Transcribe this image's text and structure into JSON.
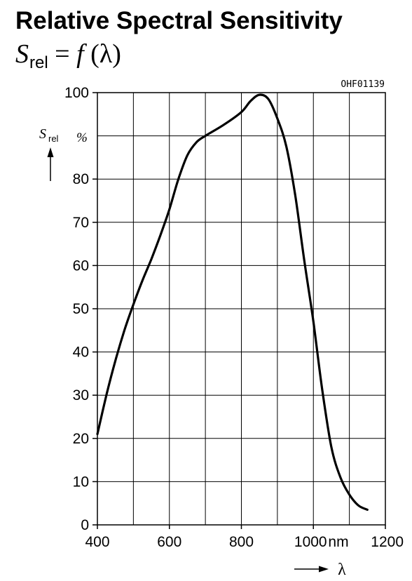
{
  "title": "Relative Spectral Sensitivity",
  "formula": {
    "lhs": "S",
    "lhs_sub": "rel",
    "eq": " = ",
    "fn": "f",
    "arg": " (λ)"
  },
  "figure_code": "OHF01139",
  "y_axis": {
    "symbol": "S",
    "symbol_sub": "rel",
    "unit": "%"
  },
  "x_axis": {
    "unit": "nm",
    "symbol": "λ"
  },
  "chart_data": {
    "type": "line",
    "title": "Relative Spectral Sensitivity",
    "xlabel": "λ",
    "ylabel": "S_rel",
    "x_unit": "nm",
    "y_unit": "%",
    "xlim": [
      400,
      1200
    ],
    "ylim": [
      0,
      100
    ],
    "x_ticks": [
      400,
      600,
      800,
      1000,
      1200
    ],
    "x_tick_labels": [
      "400",
      "600",
      "800",
      "1000",
      "1200"
    ],
    "x_gridlines": [
      400,
      500,
      600,
      700,
      800,
      900,
      1000,
      1100,
      1200
    ],
    "y_ticks": [
      0,
      10,
      20,
      30,
      40,
      50,
      60,
      70,
      80,
      100
    ],
    "y_tick_labels": [
      "0",
      "10",
      "20",
      "30",
      "40",
      "50",
      "60",
      "70",
      "80",
      "100"
    ],
    "y_gridlines": [
      0,
      10,
      20,
      30,
      40,
      50,
      60,
      70,
      80,
      90,
      100
    ],
    "grid": true,
    "series": [
      {
        "x": [
          400,
          425,
          450,
          475,
          500,
          525,
          550,
          575,
          600,
          625,
          650,
          675,
          700,
          750,
          800,
          825,
          850,
          875,
          900,
          925,
          950,
          975,
          1000,
          1025,
          1050,
          1075,
          1100,
          1125,
          1150
        ],
        "y": [
          21,
          30,
          38,
          45,
          51,
          56.5,
          61.5,
          67,
          73,
          80,
          85.5,
          88.5,
          90,
          92.5,
          95.5,
          98,
          99.5,
          98.5,
          94,
          87.5,
          76,
          61,
          47,
          31,
          18,
          11,
          7,
          4.5,
          3.5
        ]
      }
    ]
  }
}
